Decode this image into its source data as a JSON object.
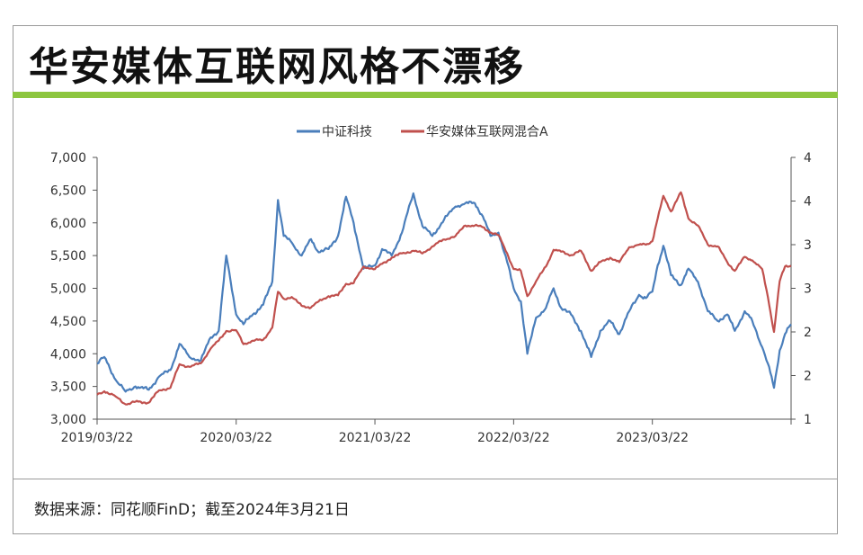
{
  "page": {
    "title": "华安媒体互联网风格不漂移",
    "source": "数据来源：同花顺FinD；截至2024年3月21日",
    "accent_color": "#8dc63f"
  },
  "chart_data": {
    "type": "line",
    "title": "华安媒体互联网风格不漂移",
    "legend_position": "top-center",
    "grid": false,
    "x_ticks": [
      "2019/03/22",
      "2020/03/22",
      "2021/03/22",
      "2022/03/22",
      "2023/03/22"
    ],
    "x_range": [
      "2019/03/22",
      "2024/03/21"
    ],
    "y_left": {
      "ticks": [
        "3,000",
        "3,500",
        "4,000",
        "4,500",
        "5,000",
        "5,500",
        "6,000",
        "6,500",
        "7,000"
      ],
      "range": [
        3000,
        7000
      ]
    },
    "y_right": {
      "ticks": [
        "1",
        "2",
        "2",
        "3",
        "3",
        "4",
        "4"
      ],
      "range": [
        1.0,
        4.0
      ]
    },
    "series": [
      {
        "name": "中证科技",
        "axis": "left",
        "color": "#4a7ebb",
        "points": [
          [
            "2019/03/22",
            3850
          ],
          [
            "2019/04/10",
            3950
          ],
          [
            "2019/05/10",
            3600
          ],
          [
            "2019/06/05",
            3420
          ],
          [
            "2019/07/01",
            3500
          ],
          [
            "2019/08/05",
            3450
          ],
          [
            "2019/09/01",
            3650
          ],
          [
            "2019/10/01",
            3750
          ],
          [
            "2019/10/25",
            4150
          ],
          [
            "2019/11/20",
            3950
          ],
          [
            "2019/12/20",
            3900
          ],
          [
            "2020/01/15",
            4250
          ],
          [
            "2020/02/05",
            4350
          ],
          [
            "2020/02/25",
            5500
          ],
          [
            "2020/03/22",
            4600
          ],
          [
            "2020/04/10",
            4450
          ],
          [
            "2020/05/05",
            4600
          ],
          [
            "2020/06/01",
            4750
          ],
          [
            "2020/06/25",
            5100
          ],
          [
            "2020/07/10",
            6350
          ],
          [
            "2020/07/25",
            5800
          ],
          [
            "2020/08/15",
            5700
          ],
          [
            "2020/09/10",
            5500
          ],
          [
            "2020/10/05",
            5750
          ],
          [
            "2020/10/25",
            5550
          ],
          [
            "2020/11/20",
            5600
          ],
          [
            "2020/12/15",
            5800
          ],
          [
            "2021/01/05",
            6400
          ],
          [
            "2021/01/25",
            6000
          ],
          [
            "2021/02/20",
            5300
          ],
          [
            "2021/03/22",
            5350
          ],
          [
            "2021/04/10",
            5600
          ],
          [
            "2021/05/05",
            5500
          ],
          [
            "2021/06/01",
            5850
          ],
          [
            "2021/07/01",
            6450
          ],
          [
            "2021/07/25",
            5950
          ],
          [
            "2021/08/20",
            5800
          ],
          [
            "2021/09/20",
            6050
          ],
          [
            "2021/10/20",
            6250
          ],
          [
            "2021/11/15",
            6300
          ],
          [
            "2021/12/10",
            6300
          ],
          [
            "2021/12/31",
            6100
          ],
          [
            "2022/01/20",
            5800
          ],
          [
            "2022/02/10",
            5850
          ],
          [
            "2022/03/05",
            5400
          ],
          [
            "2022/03/22",
            5000
          ],
          [
            "2022/04/10",
            4800
          ],
          [
            "2022/04/27",
            4000
          ],
          [
            "2022/05/20",
            4550
          ],
          [
            "2022/06/15",
            4700
          ],
          [
            "2022/07/05",
            5000
          ],
          [
            "2022/07/25",
            4700
          ],
          [
            "2022/08/20",
            4600
          ],
          [
            "2022/09/15",
            4350
          ],
          [
            "2022/10/12",
            3950
          ],
          [
            "2022/11/05",
            4350
          ],
          [
            "2022/12/01",
            4500
          ],
          [
            "2022/12/25",
            4300
          ],
          [
            "2023/01/20",
            4650
          ],
          [
            "2023/02/15",
            4900
          ],
          [
            "2023/03/05",
            4850
          ],
          [
            "2023/03/22",
            4950
          ],
          [
            "2023/04/05",
            5350
          ],
          [
            "2023/04/20",
            5650
          ],
          [
            "2023/05/10",
            5200
          ],
          [
            "2023/06/05",
            5050
          ],
          [
            "2023/06/25",
            5300
          ],
          [
            "2023/07/20",
            5100
          ],
          [
            "2023/08/15",
            4650
          ],
          [
            "2023/09/10",
            4500
          ],
          [
            "2023/10/05",
            4600
          ],
          [
            "2023/10/25",
            4350
          ],
          [
            "2023/11/20",
            4650
          ],
          [
            "2023/12/10",
            4500
          ],
          [
            "2024/01/05",
            4100
          ],
          [
            "2024/01/20",
            3850
          ],
          [
            "2024/02/05",
            3480
          ],
          [
            "2024/02/20",
            4050
          ],
          [
            "2024/03/05",
            4300
          ],
          [
            "2024/03/21",
            4450
          ]
        ]
      },
      {
        "name": "华安媒体互联网混合A",
        "axis": "right",
        "color": "#c0504d",
        "points": [
          [
            "2019/03/22",
            1.28
          ],
          [
            "2019/04/10",
            1.32
          ],
          [
            "2019/05/10",
            1.26
          ],
          [
            "2019/06/05",
            1.17
          ],
          [
            "2019/07/01",
            1.2
          ],
          [
            "2019/08/05",
            1.19
          ],
          [
            "2019/09/01",
            1.33
          ],
          [
            "2019/10/01",
            1.36
          ],
          [
            "2019/10/25",
            1.63
          ],
          [
            "2019/11/20",
            1.6
          ],
          [
            "2019/12/20",
            1.64
          ],
          [
            "2020/01/15",
            1.81
          ],
          [
            "2020/02/05",
            1.9
          ],
          [
            "2020/02/25",
            2.01
          ],
          [
            "2020/03/22",
            2.02
          ],
          [
            "2020/04/10",
            1.86
          ],
          [
            "2020/05/05",
            1.9
          ],
          [
            "2020/06/01",
            1.91
          ],
          [
            "2020/06/25",
            2.05
          ],
          [
            "2020/07/10",
            2.46
          ],
          [
            "2020/07/25",
            2.38
          ],
          [
            "2020/08/15",
            2.4
          ],
          [
            "2020/09/10",
            2.3
          ],
          [
            "2020/10/05",
            2.28
          ],
          [
            "2020/10/25",
            2.35
          ],
          [
            "2020/11/20",
            2.41
          ],
          [
            "2020/12/15",
            2.42
          ],
          [
            "2021/01/05",
            2.55
          ],
          [
            "2021/01/25",
            2.56
          ],
          [
            "2021/02/20",
            2.75
          ],
          [
            "2021/03/22",
            2.72
          ],
          [
            "2021/04/10",
            2.78
          ],
          [
            "2021/05/05",
            2.85
          ],
          [
            "2021/06/01",
            2.9
          ],
          [
            "2021/07/01",
            2.93
          ],
          [
            "2021/07/25",
            2.9
          ],
          [
            "2021/08/20",
            2.98
          ],
          [
            "2021/09/20",
            3.06
          ],
          [
            "2021/10/20",
            3.1
          ],
          [
            "2021/11/15",
            3.22
          ],
          [
            "2021/12/10",
            3.22
          ],
          [
            "2021/12/31",
            3.2
          ],
          [
            "2022/01/20",
            3.14
          ],
          [
            "2022/02/10",
            3.11
          ],
          [
            "2022/03/05",
            2.9
          ],
          [
            "2022/03/22",
            2.72
          ],
          [
            "2022/04/10",
            2.7
          ],
          [
            "2022/04/27",
            2.41
          ],
          [
            "2022/05/20",
            2.58
          ],
          [
            "2022/06/15",
            2.75
          ],
          [
            "2022/07/05",
            2.94
          ],
          [
            "2022/07/25",
            2.92
          ],
          [
            "2022/08/20",
            2.88
          ],
          [
            "2022/09/15",
            2.93
          ],
          [
            "2022/10/12",
            2.7
          ],
          [
            "2022/11/05",
            2.8
          ],
          [
            "2022/12/01",
            2.85
          ],
          [
            "2022/12/25",
            2.8
          ],
          [
            "2023/01/20",
            2.97
          ],
          [
            "2023/02/15",
            3.0
          ],
          [
            "2023/03/05",
            3.0
          ],
          [
            "2023/03/22",
            3.04
          ],
          [
            "2023/04/05",
            3.3
          ],
          [
            "2023/04/20",
            3.56
          ],
          [
            "2023/05/10",
            3.38
          ],
          [
            "2023/06/05",
            3.6
          ],
          [
            "2023/06/25",
            3.3
          ],
          [
            "2023/07/20",
            3.22
          ],
          [
            "2023/08/15",
            3.0
          ],
          [
            "2023/09/10",
            2.98
          ],
          [
            "2023/10/05",
            2.8
          ],
          [
            "2023/10/25",
            2.7
          ],
          [
            "2023/11/20",
            2.86
          ],
          [
            "2023/12/10",
            2.82
          ],
          [
            "2024/01/05",
            2.72
          ],
          [
            "2024/01/20",
            2.4
          ],
          [
            "2024/02/05",
            2.0
          ],
          [
            "2024/02/20",
            2.58
          ],
          [
            "2024/03/05",
            2.75
          ],
          [
            "2024/03/21",
            2.76
          ]
        ]
      }
    ]
  }
}
